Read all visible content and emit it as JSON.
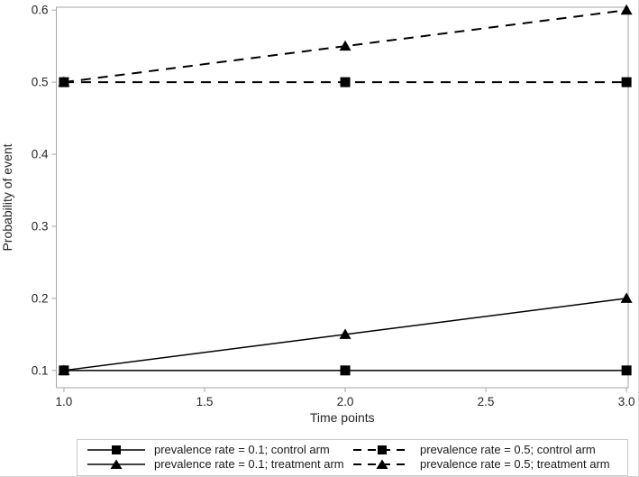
{
  "chart_data": {
    "type": "line",
    "title": "",
    "xlabel": "Time points",
    "ylabel": "Probability of event",
    "x": [
      1.0,
      2.0,
      3.0
    ],
    "series": [
      {
        "id": "prev01-control",
        "name": "prevalence rate = 0.1; control arm",
        "values": [
          0.1,
          0.1,
          0.1
        ],
        "line": "solid",
        "marker": "square"
      },
      {
        "id": "prev01-treatment",
        "name": "prevalence rate = 0.1; treatment arm",
        "values": [
          0.1,
          0.15,
          0.2
        ],
        "line": "solid",
        "marker": "triangle"
      },
      {
        "id": "prev05-control",
        "name": "prevalence rate = 0.5; control arm",
        "values": [
          0.5,
          0.5,
          0.5
        ],
        "line": "dashed",
        "marker": "square"
      },
      {
        "id": "prev05-treatment",
        "name": "prevalence rate = 0.5; treatment arm",
        "values": [
          0.5,
          0.55,
          0.6
        ],
        "line": "dashed",
        "marker": "triangle"
      }
    ],
    "xlim": [
      0.973,
      3.006
    ],
    "ylim": [
      0.076,
      0.604
    ],
    "xticks": [
      1.0,
      1.5,
      2.0,
      2.5,
      3.0
    ],
    "xtick_labels": [
      "1.0",
      "1.5",
      "2.0",
      "2.5",
      "3.0"
    ],
    "yticks": [
      0.1,
      0.2,
      0.3,
      0.4,
      0.5,
      0.6
    ],
    "ytick_labels": [
      "0.1",
      "0.2",
      "0.3",
      "0.4",
      "0.5",
      "0.6"
    ],
    "grid": false,
    "legend_position": "bottom",
    "colors": {
      "line": "#000000",
      "frame": "#a6a6a6",
      "text": "#262626",
      "background": "#ffffff",
      "legend_border": "#c9c9c9"
    }
  },
  "legend": {
    "columns": 2,
    "items": [
      {
        "label": "prevalence rate = 0.1; control arm",
        "line": "solid",
        "marker": "square"
      },
      {
        "label": "prevalence rate = 0.5; control arm",
        "line": "dashed",
        "marker": "square"
      },
      {
        "label": "prevalence rate = 0.1; treatment arm",
        "line": "solid",
        "marker": "triangle"
      },
      {
        "label": "prevalence rate = 0.5; treatment arm",
        "line": "dashed",
        "marker": "triangle"
      }
    ]
  }
}
